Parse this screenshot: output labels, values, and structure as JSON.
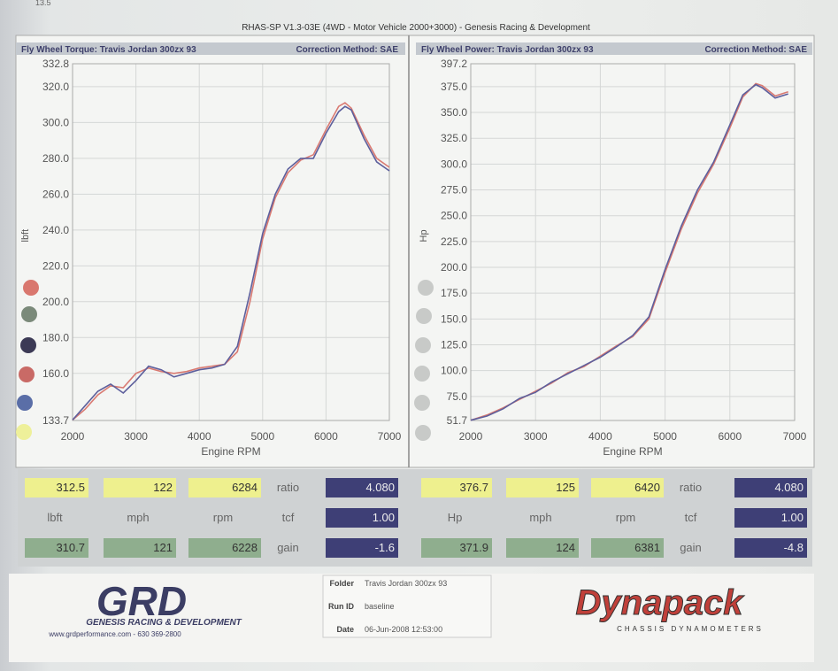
{
  "corner_label": "13.5",
  "header": "RHAS-SP V1.3-03E  (4WD - Motor Vehicle 2000+3000) - Genesis Racing & Development",
  "chart_data": [
    {
      "type": "line",
      "subtitle": "Fly Wheel Torque: Travis Jordan 300zx 93",
      "correction": "Correction Method: SAE",
      "x_label": "Engine RPM",
      "y_label": "lbft",
      "grid": true,
      "x": [
        2000,
        2200,
        2400,
        2600,
        2800,
        3000,
        3200,
        3400,
        3600,
        3800,
        4000,
        4200,
        4400,
        4600,
        4800,
        5000,
        5200,
        5400,
        5600,
        5800,
        6000,
        6200,
        6300,
        6400,
        6600,
        6800,
        7000
      ],
      "series": [
        {
          "color": "#d97a72",
          "values": [
            134,
            140,
            148,
            153,
            152,
            160,
            163,
            161,
            160,
            161,
            163,
            164,
            165,
            172,
            200,
            235,
            258,
            272,
            279,
            282,
            296,
            309,
            311,
            308,
            293,
            280,
            275
          ]
        },
        {
          "color": "#5d5f9c",
          "values": [
            134,
            142,
            150,
            154,
            149,
            156,
            164,
            162,
            158,
            160,
            162,
            163,
            165,
            175,
            205,
            238,
            260,
            274,
            280,
            280,
            294,
            306,
            309,
            307,
            291,
            278,
            273
          ]
        }
      ],
      "xlim": [
        2000,
        7000
      ],
      "xticks": [
        2000,
        3000,
        4000,
        5000,
        6000,
        7000
      ],
      "ylim": [
        133.7,
        332.8
      ],
      "yticks": [
        133.7,
        {
          "value": 160,
          "label": "160.0"
        },
        {
          "value": 180,
          "label": "180.0"
        },
        {
          "value": 200,
          "label": "200.0"
        },
        {
          "value": 220,
          "label": "220.0"
        },
        {
          "value": 240,
          "label": "240.0"
        },
        {
          "value": 260,
          "label": "260.0"
        },
        {
          "value": 280,
          "label": "280.0"
        },
        {
          "value": 300,
          "label": "300.0"
        },
        {
          "value": 320,
          "label": "320.0"
        },
        332.8
      ]
    },
    {
      "type": "line",
      "subtitle": "Fly Wheel Power: Travis Jordan 300zx 93",
      "correction": "Correction Method: SAE",
      "x_label": "Engine RPM",
      "y_label": "Hp",
      "grid": true,
      "x": [
        2000,
        2250,
        2500,
        2750,
        3000,
        3250,
        3500,
        3750,
        4000,
        4250,
        4500,
        4750,
        5000,
        5250,
        5500,
        5750,
        6000,
        6200,
        6400,
        6500,
        6700,
        6900
      ],
      "series": [
        {
          "color": "#d97a72",
          "values": [
            52,
            57,
            64,
            72,
            80,
            88,
            98,
            104,
            114,
            124,
            133,
            150,
            195,
            237,
            272,
            300,
            335,
            365,
            378,
            376,
            366,
            370
          ]
        },
        {
          "color": "#5d5f9c",
          "values": [
            52,
            56,
            63,
            73,
            79,
            89,
            97,
            105,
            113,
            123,
            134,
            152,
            198,
            240,
            275,
            302,
            338,
            367,
            377,
            374,
            364,
            368
          ]
        }
      ],
      "xlim": [
        2000,
        7000
      ],
      "xticks": [
        2000,
        3000,
        4000,
        5000,
        6000,
        7000
      ],
      "ylim": [
        51.7,
        397.2
      ],
      "yticks": [
        51.7,
        {
          "value": 75,
          "label": "75.0"
        },
        {
          "value": 100,
          "label": "100.0"
        },
        {
          "value": 125,
          "label": "125.0"
        },
        {
          "value": 150,
          "label": "150.0"
        },
        {
          "value": 175,
          "label": "175.0"
        },
        {
          "value": 200,
          "label": "200.0"
        },
        {
          "value": 225,
          "label": "225.0"
        },
        {
          "value": 250,
          "label": "250.0"
        },
        {
          "value": 275,
          "label": "275.0"
        },
        {
          "value": 300,
          "label": "300.0"
        },
        {
          "value": 325,
          "label": "325.0"
        },
        {
          "value": 350,
          "label": "350.0"
        },
        {
          "value": 375,
          "label": "375.0"
        },
        397.2
      ]
    }
  ],
  "readouts": [
    {
      "rows": [
        [
          "312.5",
          "122",
          "6284",
          "ratio",
          "4.080"
        ],
        [
          "lbft",
          "mph",
          "rpm",
          "tcf",
          "1.00"
        ],
        [
          "310.7",
          "121",
          "6228",
          "gain",
          "-1.6"
        ]
      ]
    },
    {
      "rows": [
        [
          "376.7",
          "125",
          "6420",
          "ratio",
          "4.080"
        ],
        [
          "Hp",
          "mph",
          "rpm",
          "tcf",
          "1.00"
        ],
        [
          "371.9",
          "124",
          "6381",
          "gain",
          "-4.8"
        ]
      ]
    }
  ],
  "footer": {
    "logo": "GRD",
    "company": "GENESIS RACING & DEVELOPMENT",
    "contact": "www.grdperformance.com - 630 369-2800",
    "info": [
      [
        "Folder",
        "Travis Jordan 300zx 93"
      ],
      [
        "Run ID",
        "baseline"
      ],
      [
        "Date",
        "06-Jun-2008  12:53:00"
      ]
    ],
    "brand": "Dynapack",
    "brand_sub": "CHASSIS  DYNAMOMETERS"
  }
}
